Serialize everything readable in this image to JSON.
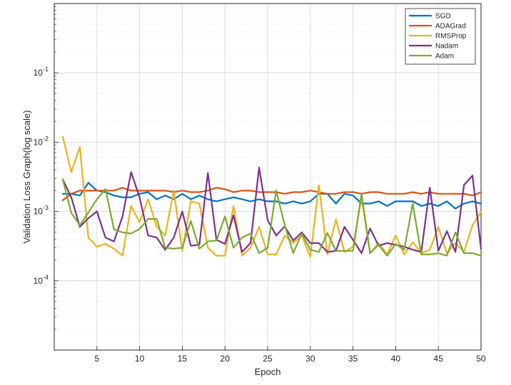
{
  "chart_data": {
    "type": "line",
    "title": "",
    "xlabel": "Epoch",
    "ylabel": "Validation Loss Graph(log scale)",
    "y_scale": "log",
    "xlim": [
      0,
      50
    ],
    "ylim": [
      1e-05,
      1
    ],
    "x_ticks": [
      5,
      10,
      15,
      20,
      25,
      30,
      35,
      40,
      45,
      50
    ],
    "y_ticks": [
      {
        "value": 0.1,
        "base": "10",
        "exp": "-1"
      },
      {
        "value": 0.01,
        "base": "10",
        "exp": "-2"
      },
      {
        "value": 0.001,
        "base": "10",
        "exp": "-3"
      },
      {
        "value": 0.0001,
        "base": "10",
        "exp": "-4"
      }
    ],
    "grid": true,
    "legend_position": "top-right",
    "x": [
      1,
      2,
      3,
      4,
      5,
      6,
      7,
      8,
      9,
      10,
      11,
      12,
      13,
      14,
      15,
      16,
      17,
      18,
      19,
      20,
      21,
      22,
      23,
      24,
      25,
      26,
      27,
      28,
      29,
      30,
      31,
      32,
      33,
      34,
      35,
      36,
      37,
      38,
      39,
      40,
      41,
      42,
      43,
      44,
      45,
      46,
      47,
      48,
      49,
      50
    ],
    "series": [
      {
        "name": "SGD",
        "color": "#0072BD",
        "values": [
          0.0018,
          0.0018,
          0.0017,
          0.0026,
          0.002,
          0.0019,
          0.0017,
          0.0016,
          0.0016,
          0.0018,
          0.0019,
          0.0015,
          0.0017,
          0.0015,
          0.0018,
          0.0015,
          0.0017,
          0.0015,
          0.0014,
          0.0015,
          0.0016,
          0.0015,
          0.0014,
          0.0015,
          0.0014,
          0.0014,
          0.0013,
          0.0014,
          0.0013,
          0.0014,
          0.0018,
          0.0018,
          0.0013,
          0.0018,
          0.0017,
          0.0013,
          0.0013,
          0.0014,
          0.0012,
          0.0014,
          0.0014,
          0.0014,
          0.0012,
          0.0013,
          0.0012,
          0.0014,
          0.0011,
          0.0013,
          0.0014,
          0.0013
        ]
      },
      {
        "name": "ADAGrad",
        "color": "#D95319",
        "values": [
          0.00145,
          0.0018,
          0.002,
          0.002,
          0.002,
          0.002,
          0.002,
          0.0022,
          0.002,
          0.002,
          0.002,
          0.002,
          0.002,
          0.0019,
          0.002,
          0.0019,
          0.0019,
          0.002,
          0.0022,
          0.0021,
          0.0019,
          0.002,
          0.002,
          0.0019,
          0.0019,
          0.0019,
          0.0018,
          0.0019,
          0.0019,
          0.002,
          0.0019,
          0.0018,
          0.0018,
          0.0019,
          0.0019,
          0.0018,
          0.0019,
          0.0019,
          0.0018,
          0.0018,
          0.0018,
          0.0019,
          0.0018,
          0.0019,
          0.0018,
          0.0018,
          0.0018,
          0.0018,
          0.0017,
          0.0019
        ]
      },
      {
        "name": "RMSProp",
        "color": "#EDB120",
        "values": [
          0.012,
          0.0037,
          0.0085,
          0.00042,
          0.00031,
          0.00034,
          0.00029,
          0.00023,
          0.0012,
          0.0007,
          0.0015,
          0.0006,
          0.00045,
          0.002,
          0.00027,
          0.0014,
          0.0013,
          0.0003,
          0.00023,
          0.00023,
          0.0012,
          0.00023,
          0.0003,
          0.0006,
          0.00024,
          0.00024,
          0.00045,
          0.00035,
          0.00045,
          0.00022,
          0.0024,
          0.00024,
          0.00077,
          0.00026,
          0.00031,
          0.0016,
          0.00025,
          0.00035,
          0.00024,
          0.00045,
          0.00024,
          0.00036,
          0.00025,
          0.00028,
          0.0006,
          0.00025,
          0.00035,
          0.00026,
          0.00063,
          0.00098
        ]
      },
      {
        "name": "Nadam",
        "color": "#7E2F8E",
        "values": [
          0.0029,
          0.0016,
          0.0006,
          0.0008,
          0.001,
          0.00042,
          0.00037,
          0.00085,
          0.0037,
          0.0016,
          0.00045,
          0.00042,
          0.00028,
          0.00042,
          0.001,
          0.00032,
          0.00033,
          0.0036,
          0.00039,
          0.00034,
          0.00088,
          0.00026,
          0.00035,
          0.0043,
          0.00075,
          0.00045,
          0.00061,
          0.00038,
          0.0005,
          0.00035,
          0.00035,
          0.00026,
          0.00027,
          0.0006,
          0.00039,
          0.00025,
          0.00057,
          0.00032,
          0.00035,
          0.00033,
          0.00031,
          0.00028,
          0.00026,
          0.0022,
          0.00027,
          0.00052,
          0.00026,
          0.0024,
          0.0033,
          0.00029
        ]
      },
      {
        "name": "Adam",
        "color": "#77AC30",
        "values": [
          0.0029,
          0.00095,
          0.00063,
          0.00097,
          0.0015,
          0.0021,
          0.00055,
          0.0005,
          0.00048,
          0.00056,
          0.00078,
          0.00078,
          0.0003,
          0.00029,
          0.0003,
          0.00073,
          0.00029,
          0.00037,
          0.00038,
          0.00085,
          0.0003,
          0.00042,
          0.00048,
          0.00025,
          0.0003,
          0.002,
          0.00064,
          0.00025,
          0.00048,
          0.00028,
          0.00026,
          0.00049,
          0.00027,
          0.00027,
          0.00027,
          0.0018,
          0.00025,
          0.00033,
          0.00023,
          0.00034,
          0.00028,
          0.0013,
          0.00024,
          0.00024,
          0.00025,
          0.00023,
          0.0005,
          0.00025,
          0.00025,
          0.00023
        ]
      }
    ]
  }
}
